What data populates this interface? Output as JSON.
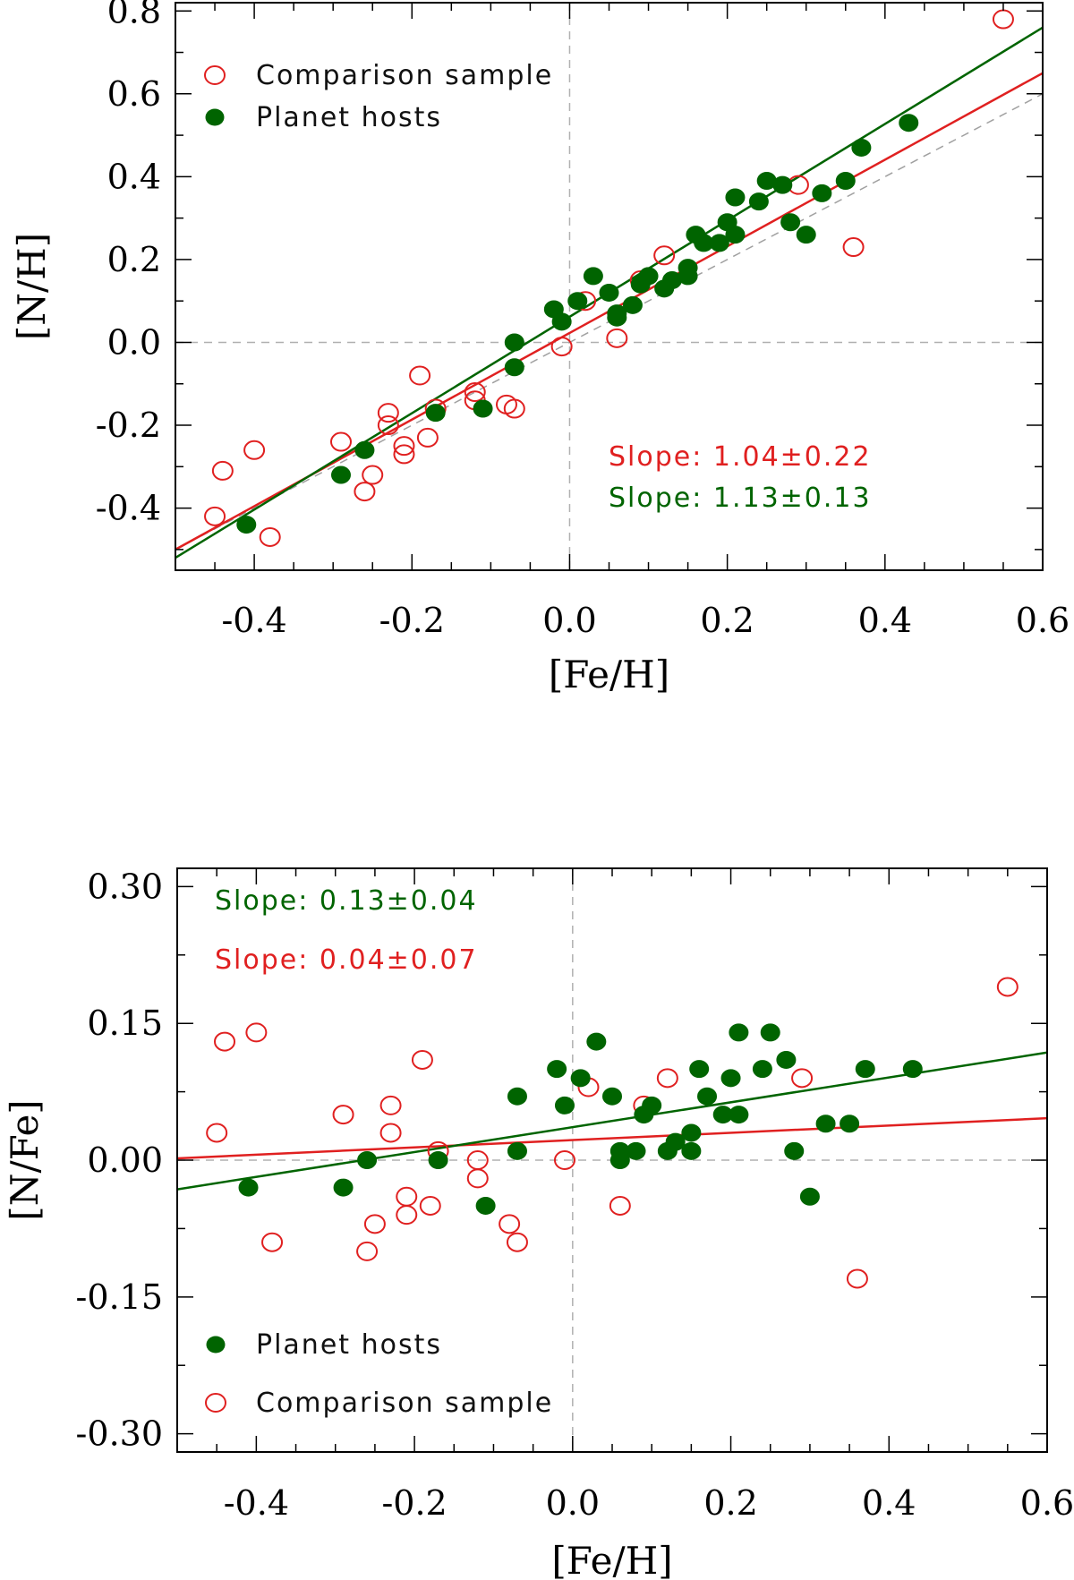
{
  "chart_data": [
    {
      "type": "scatter",
      "id": "top",
      "xlabel": "[Fe/H]",
      "ylabel": "[N/H]",
      "xlim": [
        -0.5,
        0.6
      ],
      "ylim": [
        -0.55,
        0.82
      ],
      "xticks": [
        -0.4,
        -0.2,
        0.0,
        0.2,
        0.4,
        0.6
      ],
      "xtick_labels": [
        "-0.4",
        "-0.2",
        "0.0",
        "0.2",
        "0.4",
        "0.6"
      ],
      "yticks": [
        -0.4,
        -0.2,
        0.0,
        0.2,
        0.4,
        0.6,
        0.8
      ],
      "ytick_labels": [
        "-0.4",
        "-0.2",
        "0.0",
        "0.2",
        "0.4",
        "0.6",
        "0.8"
      ],
      "zero_lines": true,
      "one_to_one_line": true,
      "legend_position": "top-left",
      "legend": [
        {
          "label": "Comparison sample",
          "marker": "open-circle",
          "color": "#e02020"
        },
        {
          "label": "Planet hosts",
          "marker": "filled-circle",
          "color": "#006400"
        }
      ],
      "annotations": [
        {
          "text": "Slope:  1.04±0.22",
          "color": "#e02020"
        },
        {
          "text": "Slope:  1.13±0.13",
          "color": "#006400"
        }
      ],
      "fit_lines": [
        {
          "series": "Comparison sample",
          "color": "#e02020",
          "x": [
            -0.5,
            0.6
          ],
          "y": [
            -0.5,
            0.65
          ]
        },
        {
          "series": "Planet hosts",
          "color": "#006400",
          "x": [
            -0.5,
            0.6
          ],
          "y": [
            -0.52,
            0.76
          ]
        }
      ],
      "series": [
        {
          "name": "Comparison sample",
          "marker": "open-circle",
          "color": "#e02020",
          "x": [
            -0.45,
            -0.44,
            -0.4,
            -0.38,
            -0.29,
            -0.26,
            -0.25,
            -0.23,
            -0.23,
            -0.21,
            -0.21,
            -0.19,
            -0.18,
            -0.17,
            -0.12,
            -0.12,
            -0.08,
            -0.07,
            -0.01,
            0.02,
            0.06,
            0.09,
            0.12,
            0.29,
            0.36,
            0.55
          ],
          "y": [
            -0.42,
            -0.31,
            -0.26,
            -0.47,
            -0.24,
            -0.36,
            -0.32,
            -0.17,
            -0.2,
            -0.25,
            -0.27,
            -0.08,
            -0.23,
            -0.16,
            -0.12,
            -0.14,
            -0.15,
            -0.16,
            -0.01,
            0.1,
            0.01,
            0.15,
            0.21,
            0.38,
            0.23,
            0.78
          ]
        },
        {
          "name": "Planet hosts",
          "marker": "filled-circle",
          "color": "#006400",
          "x": [
            -0.41,
            -0.29,
            -0.26,
            -0.17,
            -0.11,
            -0.07,
            -0.07,
            -0.02,
            -0.01,
            0.01,
            0.03,
            0.05,
            0.06,
            0.06,
            0.08,
            0.09,
            0.1,
            0.12,
            0.13,
            0.15,
            0.15,
            0.16,
            0.17,
            0.19,
            0.2,
            0.21,
            0.21,
            0.24,
            0.25,
            0.27,
            0.28,
            0.3,
            0.32,
            0.35,
            0.37,
            0.43
          ],
          "y": [
            -0.44,
            -0.32,
            -0.26,
            -0.17,
            -0.16,
            0.0,
            -0.06,
            0.08,
            0.05,
            0.1,
            0.16,
            0.12,
            0.06,
            0.07,
            0.09,
            0.14,
            0.16,
            0.13,
            0.15,
            0.16,
            0.18,
            0.26,
            0.24,
            0.24,
            0.29,
            0.26,
            0.35,
            0.34,
            0.39,
            0.38,
            0.29,
            0.26,
            0.36,
            0.39,
            0.47,
            0.53
          ]
        }
      ]
    },
    {
      "type": "scatter",
      "id": "bottom",
      "xlabel": "[Fe/H]",
      "ylabel": "[N/Fe]",
      "xlim": [
        -0.5,
        0.6
      ],
      "ylim": [
        -0.32,
        0.32
      ],
      "xticks": [
        -0.4,
        -0.2,
        0.0,
        0.2,
        0.4,
        0.6
      ],
      "xtick_labels": [
        "-0.4",
        "-0.2",
        "0.0",
        "0.2",
        "0.4",
        "0.6"
      ],
      "yticks": [
        -0.3,
        -0.15,
        0.0,
        0.15,
        0.3
      ],
      "ytick_labels": [
        "-0.30",
        "-0.15",
        "0.00",
        "0.15",
        "0.30"
      ],
      "zero_lines": true,
      "one_to_one_line": false,
      "legend_position": "bottom-left",
      "legend": [
        {
          "label": "Planet hosts",
          "marker": "filled-circle",
          "color": "#006400"
        },
        {
          "label": "Comparison sample",
          "marker": "open-circle",
          "color": "#e02020"
        }
      ],
      "annotations": [
        {
          "text": "Slope:  0.13±0.04",
          "color": "#006400"
        },
        {
          "text": "Slope:  0.04±0.07",
          "color": "#e02020"
        }
      ],
      "fit_lines": [
        {
          "series": "Comparison sample",
          "color": "#e02020",
          "x": [
            -0.5,
            0.6
          ],
          "y": [
            0.002,
            0.046
          ]
        },
        {
          "series": "Planet hosts",
          "color": "#006400",
          "x": [
            -0.5,
            0.6
          ],
          "y": [
            -0.032,
            0.118
          ]
        }
      ],
      "series": [
        {
          "name": "Comparison sample",
          "marker": "open-circle",
          "color": "#e02020",
          "x": [
            -0.45,
            -0.44,
            -0.4,
            -0.38,
            -0.29,
            -0.26,
            -0.25,
            -0.23,
            -0.23,
            -0.21,
            -0.21,
            -0.19,
            -0.18,
            -0.17,
            -0.12,
            -0.12,
            -0.08,
            -0.07,
            -0.01,
            0.02,
            0.06,
            0.09,
            0.12,
            0.29,
            0.36,
            0.55
          ],
          "y": [
            0.03,
            0.13,
            0.14,
            -0.09,
            0.05,
            -0.1,
            -0.07,
            0.06,
            0.03,
            -0.04,
            -0.06,
            0.11,
            -0.05,
            0.01,
            0.0,
            -0.02,
            -0.07,
            -0.09,
            0.0,
            0.08,
            -0.05,
            0.06,
            0.09,
            0.09,
            -0.13,
            0.19
          ]
        },
        {
          "name": "Planet hosts",
          "marker": "filled-circle",
          "color": "#006400",
          "x": [
            -0.41,
            -0.29,
            -0.26,
            -0.17,
            -0.11,
            -0.07,
            -0.07,
            -0.02,
            -0.01,
            0.01,
            0.03,
            0.05,
            0.06,
            0.06,
            0.08,
            0.09,
            0.1,
            0.12,
            0.13,
            0.15,
            0.15,
            0.16,
            0.17,
            0.19,
            0.2,
            0.21,
            0.21,
            0.24,
            0.25,
            0.27,
            0.28,
            0.3,
            0.32,
            0.35,
            0.37,
            0.43
          ],
          "y": [
            -0.03,
            -0.03,
            0.0,
            0.0,
            -0.05,
            0.07,
            0.01,
            0.1,
            0.06,
            0.09,
            0.13,
            0.07,
            0.0,
            0.01,
            0.01,
            0.05,
            0.06,
            0.01,
            0.02,
            0.01,
            0.03,
            0.1,
            0.07,
            0.05,
            0.09,
            0.05,
            0.14,
            0.1,
            0.14,
            0.11,
            0.01,
            -0.04,
            0.04,
            0.04,
            0.1,
            0.1
          ]
        }
      ]
    }
  ]
}
